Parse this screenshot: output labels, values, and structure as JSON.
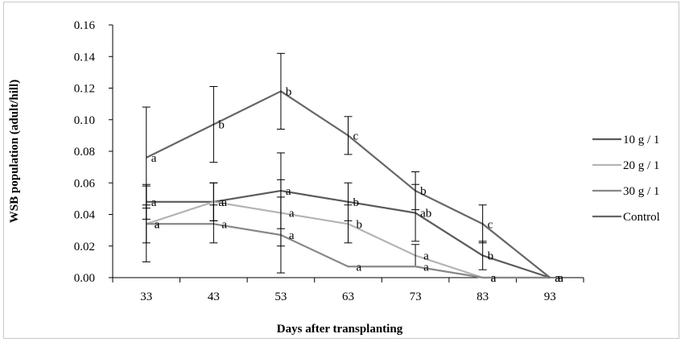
{
  "chart_data": {
    "type": "line",
    "xlabel": "Days after transplanting",
    "ylabel": "WSB population  (adult/hill)",
    "x": [
      33,
      43,
      53,
      63,
      73,
      83,
      93
    ],
    "y_ticks": [
      "0.00",
      "0.02",
      "0.04",
      "0.06",
      "0.08",
      "0.10",
      "0.12",
      "0.14",
      "0.16"
    ],
    "ylim": [
      0,
      0.16
    ],
    "grid": false,
    "legend_position": "right",
    "series": [
      {
        "name": "10 g / 1",
        "color": "#5a5a5a",
        "values": [
          0.048,
          0.048,
          0.055,
          0.048,
          0.041,
          0.014,
          0.0
        ],
        "errors": [
          0.011,
          0.012,
          0.024,
          0.012,
          0.018,
          0.009,
          0.0
        ],
        "labels": [
          "a",
          "a",
          "a",
          "b",
          "ab",
          "b",
          "a"
        ]
      },
      {
        "name": "20 g / 1",
        "color": "#b4b4b4",
        "values": [
          0.034,
          0.048,
          0.041,
          0.034,
          0.014,
          0.0,
          0.0
        ],
        "errors": [
          0.012,
          0.012,
          0.021,
          0.012,
          0.007,
          0.0,
          0.0
        ],
        "labels": [
          "a",
          "a",
          "a",
          "b",
          "a",
          "a",
          "a"
        ]
      },
      {
        "name": "30 g / 1",
        "color": "#888888",
        "values": [
          0.034,
          0.034,
          0.027,
          0.007,
          0.007,
          0.0,
          0.0
        ],
        "errors": [
          0.024,
          0.012,
          0.024,
          0.0,
          0.0,
          0.0,
          0.0
        ],
        "labels": [
          "a",
          "a",
          "a",
          "a",
          "a",
          "a",
          "a"
        ]
      },
      {
        "name": "Control",
        "color": "#666666",
        "values": [
          0.076,
          0.097,
          0.118,
          0.09,
          0.055,
          0.034,
          0.0
        ],
        "errors": [
          0.032,
          0.024,
          0.024,
          0.012,
          0.012,
          0.012,
          0.0
        ],
        "labels": [
          "a",
          "b",
          "b",
          "c",
          "b",
          "c",
          "a"
        ]
      }
    ]
  }
}
